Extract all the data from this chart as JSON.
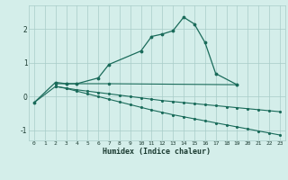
{
  "xlabel": "Humidex (Indice chaleur)",
  "bg_color": "#d4eeea",
  "grid_color": "#a8ccc8",
  "line_color": "#1a6b5a",
  "ylim": [
    -1.3,
    2.7
  ],
  "xlim": [
    -0.5,
    23.5
  ],
  "curve1_x": [
    0,
    2,
    3,
    4,
    6,
    7,
    10,
    11,
    12,
    13,
    14,
    15,
    16,
    17,
    19
  ],
  "curve1_y": [
    -0.18,
    0.42,
    0.38,
    0.38,
    0.55,
    0.95,
    1.35,
    1.78,
    1.85,
    1.95,
    2.35,
    2.15,
    1.6,
    0.68,
    0.35
  ],
  "curve2_x": [
    2,
    3,
    4,
    7,
    19
  ],
  "curve2_y": [
    0.38,
    0.38,
    0.38,
    0.38,
    0.35
  ],
  "curve3_x": [
    0,
    2,
    3,
    4,
    5,
    6,
    7,
    8,
    9,
    10,
    11,
    12,
    13,
    14,
    15,
    16,
    17,
    18,
    19,
    20,
    21,
    22,
    23
  ],
  "curve3_y": [
    -0.18,
    0.3,
    0.25,
    0.2,
    0.16,
    0.12,
    0.08,
    0.04,
    0.0,
    -0.04,
    -0.08,
    -0.12,
    -0.15,
    -0.18,
    -0.21,
    -0.24,
    -0.27,
    -0.3,
    -0.33,
    -0.36,
    -0.39,
    -0.42,
    -0.45
  ],
  "curve4_x": [
    2,
    3,
    4,
    5,
    6,
    7,
    8,
    9,
    10,
    11,
    12,
    13,
    14,
    15,
    16,
    17,
    18,
    19,
    20,
    21,
    22,
    23
  ],
  "curve4_y": [
    0.3,
    0.24,
    0.16,
    0.08,
    0.0,
    -0.08,
    -0.16,
    -0.24,
    -0.32,
    -0.4,
    -0.47,
    -0.54,
    -0.6,
    -0.66,
    -0.72,
    -0.78,
    -0.84,
    -0.9,
    -0.96,
    -1.02,
    -1.08,
    -1.14
  ]
}
